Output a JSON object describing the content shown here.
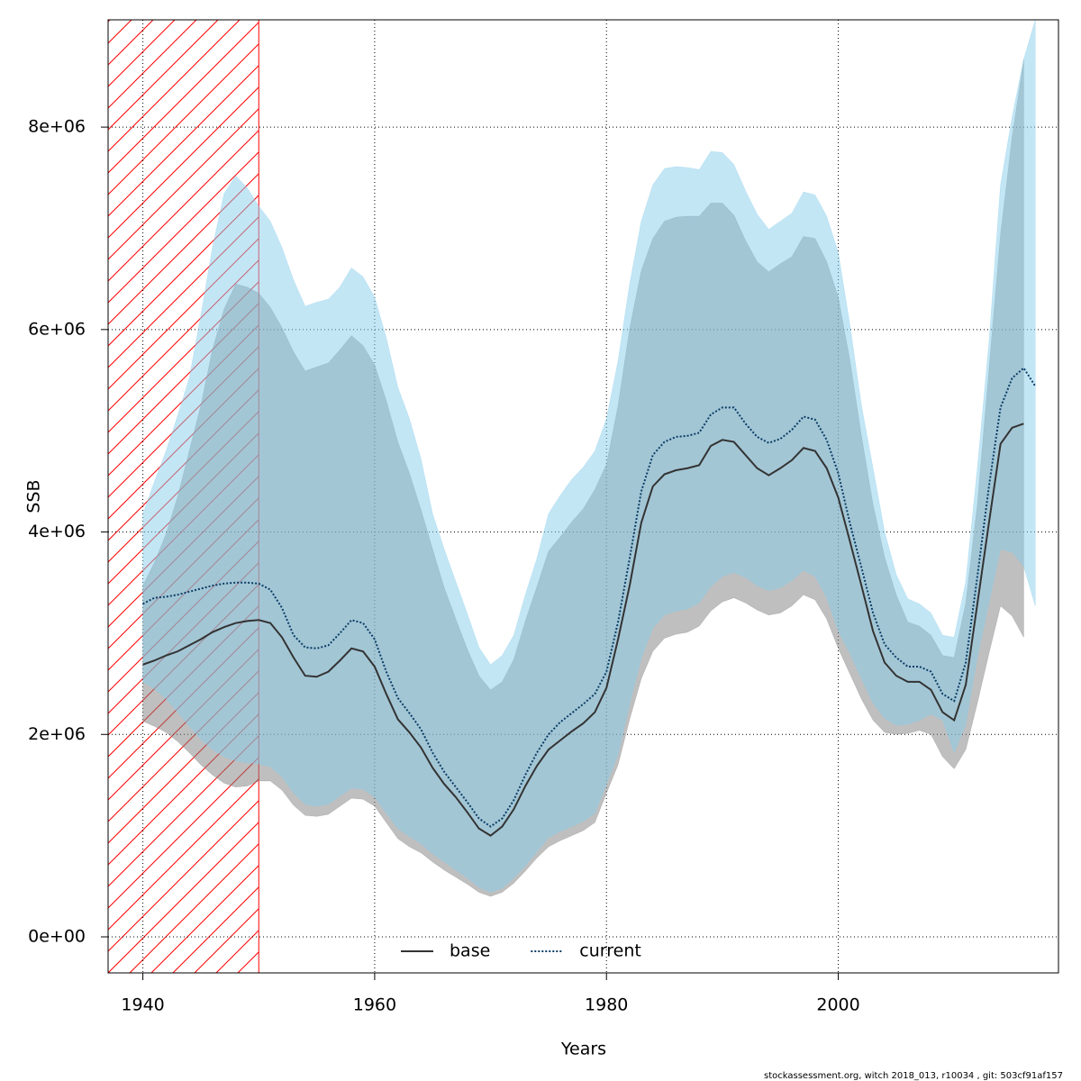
{
  "chart_data": {
    "type": "line",
    "xlabel": "Years",
    "ylabel": "SSB",
    "footer": "stockassessment.org, witch  2018_013, r10034 , git: 503cf91af157",
    "xlim": [
      1937,
      2019
    ],
    "ylim": [
      -356000.0,
      9060000.0
    ],
    "xticks": [
      1940,
      1960,
      1980,
      2000
    ],
    "yticks": [
      {
        "value": 0,
        "label": "0e+00"
      },
      {
        "value": 2000000,
        "label": "2e+06"
      },
      {
        "value": 4000000,
        "label": "4e+06"
      },
      {
        "value": 6000000,
        "label": "6e+06"
      },
      {
        "value": 8000000,
        "label": "8e+06"
      }
    ],
    "grid": true,
    "legend": "bottom",
    "hatch_region": {
      "to": 1950,
      "color": "#ff0000"
    },
    "x": [
      1940,
      1941,
      1942,
      1943,
      1944,
      1945,
      1946,
      1947,
      1948,
      1949,
      1950,
      1951,
      1952,
      1953,
      1954,
      1955,
      1956,
      1957,
      1958,
      1959,
      1960,
      1961,
      1962,
      1963,
      1964,
      1965,
      1966,
      1967,
      1968,
      1969,
      1970,
      1971,
      1972,
      1973,
      1974,
      1975,
      1976,
      1977,
      1978,
      1979,
      1980,
      1981,
      1982,
      1983,
      1984,
      1985,
      1986,
      1987,
      1988,
      1989,
      1990,
      1991,
      1992,
      1993,
      1994,
      1995,
      1996,
      1997,
      1998,
      1999,
      2000,
      2001,
      2002,
      2003,
      2004,
      2005,
      2006,
      2007,
      2008,
      2009,
      2010,
      2011,
      2012,
      2013,
      2014,
      2015,
      2016,
      2017
    ],
    "series": [
      {
        "name": "base",
        "color": "#333333",
        "dash": false,
        "band_color": "rgba(128,128,128,0.5)",
        "values": [
          2690000.0,
          2730000.0,
          2780000.0,
          2820000.0,
          2880000.0,
          2940000.0,
          3010000.0,
          3060000.0,
          3100000.0,
          3120000.0,
          3130000.0,
          3100000.0,
          2960000.0,
          2760000.0,
          2580000.0,
          2570000.0,
          2620000.0,
          2730000.0,
          2850000.0,
          2820000.0,
          2670000.0,
          2400000.0,
          2150000.0,
          2020000.0,
          1870000.0,
          1670000.0,
          1510000.0,
          1380000.0,
          1230000.0,
          1070000.0,
          1000000.0,
          1090000.0,
          1260000.0,
          1490000.0,
          1690000.0,
          1850000.0,
          1940000.0,
          2030000.0,
          2110000.0,
          2220000.0,
          2460000.0,
          2940000.0,
          3470000.0,
          4090000.0,
          4450000.0,
          4570000.0,
          4610000.0,
          4630000.0,
          4660000.0,
          4850000.0,
          4910000.0,
          4890000.0,
          4760000.0,
          4630000.0,
          4560000.0,
          4630000.0,
          4710000.0,
          4830000.0,
          4800000.0,
          4630000.0,
          4340000.0,
          3910000.0,
          3470000.0,
          3020000.0,
          2710000.0,
          2580000.0,
          2520000.0,
          2520000.0,
          2440000.0,
          2220000.0,
          2140000.0,
          2490000.0,
          3290000.0,
          4090000.0,
          4870000.0,
          5030000.0,
          5070000.0,
          null
        ],
        "lower": [
          2130000.0,
          2080000.0,
          2020000.0,
          1930000.0,
          1820000.0,
          1700000.0,
          1600000.0,
          1520000.0,
          1480000.0,
          1490000.0,
          1540000.0,
          1540000.0,
          1450000.0,
          1300000.0,
          1200000.0,
          1190000.0,
          1210000.0,
          1290000.0,
          1370000.0,
          1360000.0,
          1290000.0,
          1130000.0,
          970000.0,
          890000.0,
          830000.0,
          740000.0,
          660000.0,
          590000.0,
          520000.0,
          440000.0,
          400000.0,
          440000.0,
          530000.0,
          650000.0,
          780000.0,
          890000.0,
          950000.0,
          1000000.0,
          1050000.0,
          1130000.0,
          1420000.0,
          1700000.0,
          2150000.0,
          2550000.0,
          2820000.0,
          2950000.0,
          2990000.0,
          3010000.0,
          3070000.0,
          3220000.0,
          3310000.0,
          3350000.0,
          3300000.0,
          3230000.0,
          3180000.0,
          3200000.0,
          3270000.0,
          3380000.0,
          3330000.0,
          3140000.0,
          2850000.0,
          2600000.0,
          2350000.0,
          2140000.0,
          2020000.0,
          2000000.0,
          2010000.0,
          2040000.0,
          2000000.0,
          1780000.0,
          1660000.0,
          1850000.0,
          2310000.0,
          2800000.0,
          3270000.0,
          3170000.0,
          2960000.0,
          null
        ],
        "upper": [
          3470000.0,
          3700000.0,
          3980000.0,
          4350000.0,
          4800000.0,
          5250000.0,
          5800000.0,
          6200000.0,
          6450000.0,
          6420000.0,
          6360000.0,
          6220000.0,
          6020000.0,
          5780000.0,
          5590000.0,
          5630000.0,
          5670000.0,
          5800000.0,
          5940000.0,
          5840000.0,
          5650000.0,
          5300000.0,
          4890000.0,
          4580000.0,
          4220000.0,
          3830000.0,
          3450000.0,
          3140000.0,
          2840000.0,
          2580000.0,
          2440000.0,
          2520000.0,
          2740000.0,
          3120000.0,
          3460000.0,
          3810000.0,
          3950000.0,
          4100000.0,
          4230000.0,
          4420000.0,
          4670000.0,
          5250000.0,
          6010000.0,
          6580000.0,
          6900000.0,
          7070000.0,
          7110000.0,
          7120000.0,
          7120000.0,
          7250000.0,
          7250000.0,
          7130000.0,
          6880000.0,
          6670000.0,
          6570000.0,
          6650000.0,
          6720000.0,
          6920000.0,
          6900000.0,
          6670000.0,
          6320000.0,
          5700000.0,
          4950000.0,
          4270000.0,
          3750000.0,
          3380000.0,
          3110000.0,
          3070000.0,
          2980000.0,
          2780000.0,
          2760000.0,
          3300000.0,
          4270000.0,
          5600000.0,
          6940000.0,
          7900000.0,
          8670000.0,
          null
        ]
      },
      {
        "name": "current",
        "color": "#0a3d66",
        "dash": true,
        "band_color": "rgba(135,206,235,0.5)",
        "values": [
          3290000.0,
          3350000.0,
          3360000.0,
          3380000.0,
          3410000.0,
          3440000.0,
          3470000.0,
          3490000.0,
          3500000.0,
          3500000.0,
          3490000.0,
          3430000.0,
          3250000.0,
          2980000.0,
          2860000.0,
          2850000.0,
          2880000.0,
          3000000.0,
          3130000.0,
          3100000.0,
          2940000.0,
          2620000.0,
          2360000.0,
          2210000.0,
          2050000.0,
          1820000.0,
          1630000.0,
          1480000.0,
          1330000.0,
          1170000.0,
          1090000.0,
          1170000.0,
          1350000.0,
          1600000.0,
          1820000.0,
          2000000.0,
          2120000.0,
          2210000.0,
          2300000.0,
          2400000.0,
          2620000.0,
          3110000.0,
          3740000.0,
          4400000.0,
          4760000.0,
          4890000.0,
          4940000.0,
          4950000.0,
          4980000.0,
          5160000.0,
          5230000.0,
          5230000.0,
          5070000.0,
          4940000.0,
          4880000.0,
          4920000.0,
          5010000.0,
          5140000.0,
          5110000.0,
          4910000.0,
          4580000.0,
          4090000.0,
          3650000.0,
          3200000.0,
          2890000.0,
          2760000.0,
          2670000.0,
          2670000.0,
          2620000.0,
          2400000.0,
          2330000.0,
          2710000.0,
          3560000.0,
          4450000.0,
          5230000.0,
          5520000.0,
          5620000.0,
          5440000.0
        ],
        "lower": [
          2520000.0,
          2450000.0,
          2350000.0,
          2220000.0,
          2080000.0,
          1950000.0,
          1850000.0,
          1780000.0,
          1740000.0,
          1720000.0,
          1710000.0,
          1680000.0,
          1580000.0,
          1420000.0,
          1310000.0,
          1290000.0,
          1310000.0,
          1390000.0,
          1470000.0,
          1460000.0,
          1380000.0,
          1220000.0,
          1070000.0,
          990000.0,
          920000.0,
          820000.0,
          740000.0,
          660000.0,
          580000.0,
          490000.0,
          440000.0,
          480000.0,
          580000.0,
          700000.0,
          840000.0,
          980000.0,
          1040000.0,
          1090000.0,
          1140000.0,
          1220000.0,
          1510000.0,
          1800000.0,
          2300000.0,
          2750000.0,
          3050000.0,
          3180000.0,
          3220000.0,
          3240000.0,
          3300000.0,
          3460000.0,
          3560000.0,
          3600000.0,
          3550000.0,
          3470000.0,
          3420000.0,
          3450000.0,
          3520000.0,
          3620000.0,
          3560000.0,
          3350000.0,
          3020000.0,
          2800000.0,
          2550000.0,
          2310000.0,
          2160000.0,
          2090000.0,
          2100000.0,
          2140000.0,
          2200000.0,
          2140000.0,
          1820000.0,
          2100000.0,
          2760000.0,
          3300000.0,
          3830000.0,
          3800000.0,
          3660000.0,
          3270000.0
        ],
        "upper": [
          4180000.0,
          4500000.0,
          4800000.0,
          5150000.0,
          5520000.0,
          6140000.0,
          6810000.0,
          7340000.0,
          7520000.0,
          7400000.0,
          7220000.0,
          7070000.0,
          6810000.0,
          6490000.0,
          6230000.0,
          6270000.0,
          6300000.0,
          6420000.0,
          6610000.0,
          6520000.0,
          6320000.0,
          5920000.0,
          5430000.0,
          5120000.0,
          4720000.0,
          4180000.0,
          3830000.0,
          3510000.0,
          3190000.0,
          2860000.0,
          2690000.0,
          2780000.0,
          2980000.0,
          3380000.0,
          3740000.0,
          4180000.0,
          4360000.0,
          4520000.0,
          4640000.0,
          4800000.0,
          5120000.0,
          5690000.0,
          6450000.0,
          7070000.0,
          7430000.0,
          7590000.0,
          7610000.0,
          7600000.0,
          7580000.0,
          7760000.0,
          7750000.0,
          7630000.0,
          7370000.0,
          7140000.0,
          6990000.0,
          7070000.0,
          7150000.0,
          7360000.0,
          7330000.0,
          7120000.0,
          6760000.0,
          6050000.0,
          5250000.0,
          4630000.0,
          4000000.0,
          3580000.0,
          3340000.0,
          3290000.0,
          3200000.0,
          2980000.0,
          2960000.0,
          3510000.0,
          4630000.0,
          5870000.0,
          7430000.0,
          8100000.0,
          8670000.0,
          9060000.0
        ]
      }
    ]
  }
}
